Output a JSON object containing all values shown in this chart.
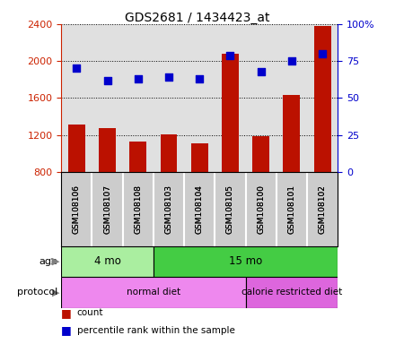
{
  "title": "GDS2681 / 1434423_at",
  "samples": [
    "GSM108106",
    "GSM108107",
    "GSM108108",
    "GSM108103",
    "GSM108104",
    "GSM108105",
    "GSM108100",
    "GSM108101",
    "GSM108102"
  ],
  "counts": [
    1310,
    1270,
    1130,
    1210,
    1110,
    2080,
    1190,
    1630,
    2380
  ],
  "percentile_ranks": [
    70,
    62,
    63,
    64,
    63,
    79,
    68,
    75,
    80
  ],
  "ylim_left": [
    800,
    2400
  ],
  "ylim_right": [
    0,
    100
  ],
  "yticks_left": [
    800,
    1200,
    1600,
    2000,
    2400
  ],
  "yticks_right": [
    0,
    25,
    50,
    75,
    100
  ],
  "bar_color": "#bb1100",
  "dot_color": "#0000cc",
  "age_groups": [
    {
      "label": "4 mo",
      "start": 0,
      "end": 3,
      "color": "#aaeea0"
    },
    {
      "label": "15 mo",
      "start": 3,
      "end": 9,
      "color": "#44cc44"
    }
  ],
  "protocol_groups": [
    {
      "label": "normal diet",
      "start": 0,
      "end": 6,
      "color": "#ee88ee"
    },
    {
      "label": "calorie restricted diet",
      "start": 6,
      "end": 9,
      "color": "#dd66dd"
    }
  ],
  "plot_bg_color": "#e0e0e0",
  "label_box_color": "#cccccc",
  "left_axis_color": "#cc2200",
  "right_axis_color": "#0000cc",
  "grid_color": "#000000",
  "right_tick_labels": [
    "0",
    "25",
    "50",
    "75",
    "100%"
  ]
}
